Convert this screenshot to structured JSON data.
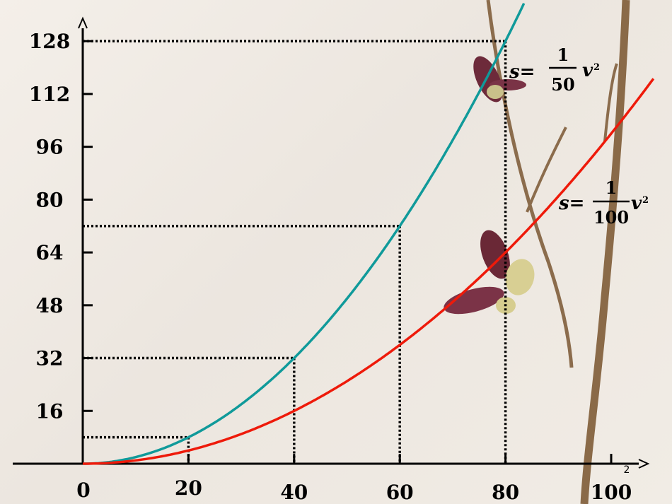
{
  "chart_data": {
    "type": "line",
    "x_ticks": [
      0,
      20,
      40,
      60,
      80,
      100
    ],
    "y_ticks": [
      16,
      32,
      48,
      64,
      80,
      96,
      112,
      128
    ],
    "xlim": [
      0,
      100
    ],
    "ylim": [
      0,
      128
    ],
    "grid": false,
    "series": [
      {
        "name": "s= 1/50 v²",
        "color": "#109a9a",
        "coef": 0.02,
        "x_end": 83.5,
        "formula": {
          "s": "s=",
          "num": "1",
          "den": "50",
          "v": "v",
          "exp": "2"
        }
      },
      {
        "name": "s= 1/100 v²",
        "color": "#ee1a0a",
        "coef": 0.01,
        "x_end": 108,
        "formula": {
          "s": "s=",
          "num": "1",
          "den": "100",
          "v": "v",
          "exp": "2"
        }
      }
    ],
    "guides": [
      {
        "x": 20,
        "y": 8
      },
      {
        "x": 40,
        "y": 32
      },
      {
        "x": 60,
        "y": 72
      },
      {
        "x": 80,
        "y": 128
      }
    ],
    "page_number": "2"
  }
}
